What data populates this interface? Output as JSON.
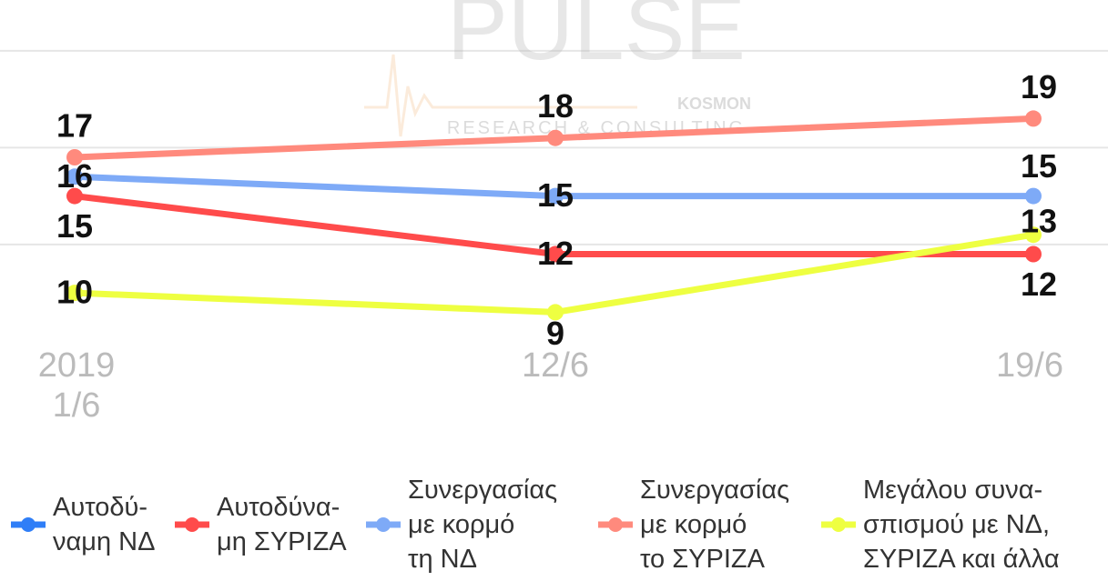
{
  "chart_data": {
    "type": "line",
    "watermark": {
      "title": "PULSE",
      "brand": "KOSMON",
      "subtitle": "RESEARCH & CONSULTING"
    },
    "categories": [
      "2019\n1/6",
      "12/6",
      "19/6"
    ],
    "series": [
      {
        "name": "Αυτοδύ-\nναμη ΝΔ",
        "color": "#2f7ef7",
        "values": [
          null,
          null,
          null
        ]
      },
      {
        "name": "Αυτοδύνα-\nμη ΣΥΡΙΖΑ",
        "color": "#ff4b4b",
        "values": [
          15,
          12,
          12
        ]
      },
      {
        "name": "Συνεργασίας\nμε κορμό\nτη ΝΔ",
        "color": "#7eaaf7",
        "values": [
          16,
          15,
          15
        ]
      },
      {
        "name": "Συνεργασίας\nμε κορμό\nτο ΣΥΡΙΖΑ",
        "color": "#ff8a7d",
        "values": [
          17,
          18,
          19
        ]
      },
      {
        "name": "Μεγάλου συνα-\nσπισμού με ΝΔ,\nΣΥΡΙΖΑ και άλλα",
        "color": "#eeff41",
        "values": [
          10,
          9,
          13
        ]
      }
    ],
    "ylim": [
      5,
      25
    ],
    "gridlines": [
      12.5,
      17.5,
      22.5
    ],
    "grid": true
  }
}
